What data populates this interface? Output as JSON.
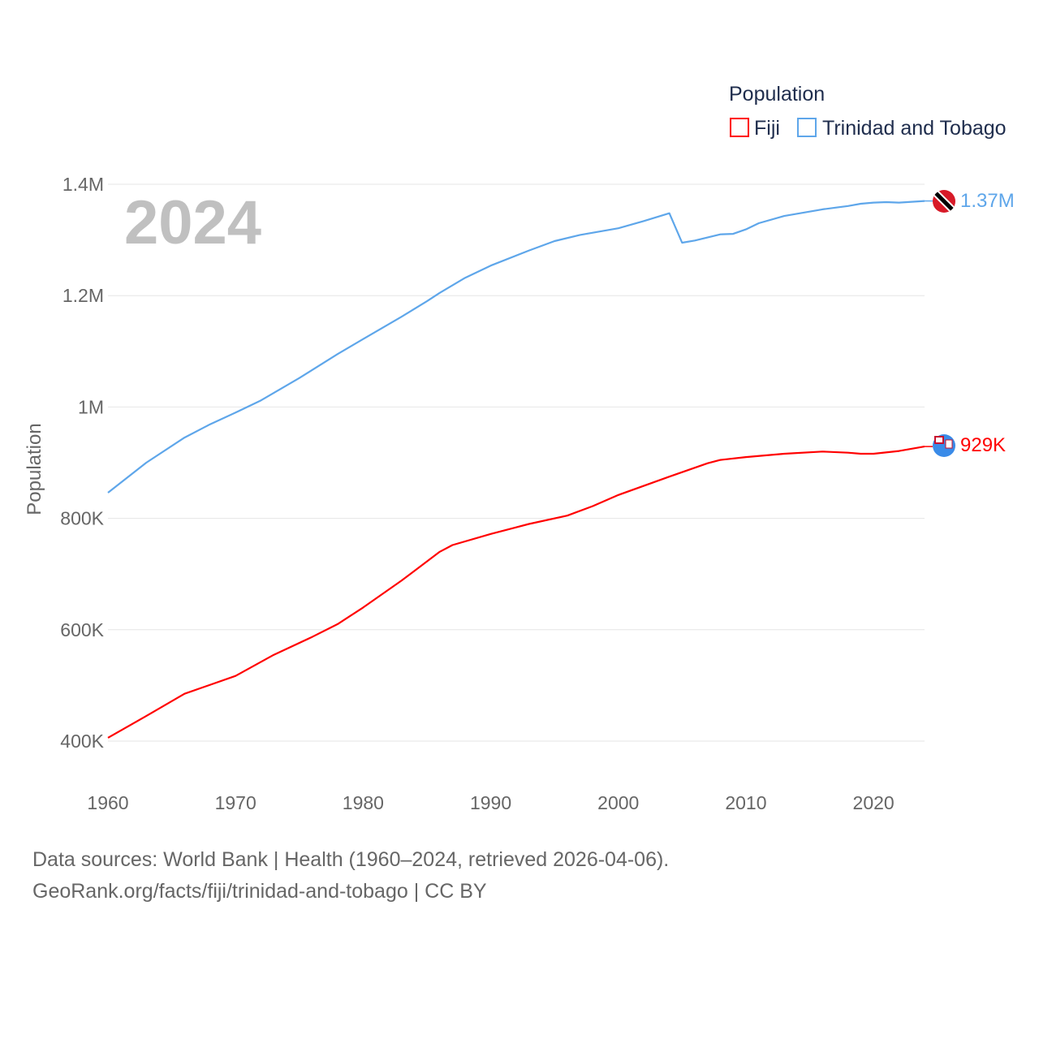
{
  "chart_data": {
    "type": "line",
    "year_label": "2024",
    "ylabel": "Population",
    "ylim": [
      400000,
      1400000
    ],
    "xlim": [
      1960,
      2024
    ],
    "y_ticks": [
      {
        "v": 400000,
        "label": "400K"
      },
      {
        "v": 600000,
        "label": "600K"
      },
      {
        "v": 800000,
        "label": "800K"
      },
      {
        "v": 1000000,
        "label": "1M"
      },
      {
        "v": 1200000,
        "label": "1.2M"
      },
      {
        "v": 1400000,
        "label": "1.4M"
      }
    ],
    "x_ticks": [
      1960,
      1970,
      1980,
      1990,
      2000,
      2010,
      2020
    ],
    "legend": {
      "title": "Population",
      "placement": "top-right"
    },
    "series": [
      {
        "name": "Fiji",
        "color": "#ff0000",
        "end_label": "929K",
        "x": [
          1960,
          1963,
          1966,
          1970,
          1973,
          1976,
          1978,
          1980,
          1983,
          1986,
          1987,
          1990,
          1993,
          1996,
          1998,
          2000,
          2004,
          2007,
          2008,
          2010,
          2013,
          2016,
          2018,
          2019,
          2020,
          2022,
          2024
        ],
        "y": [
          406000,
          445000,
          485000,
          517000,
          555000,
          587000,
          610000,
          640000,
          688000,
          740000,
          752000,
          772000,
          790000,
          805000,
          822000,
          842000,
          875000,
          899000,
          905000,
          910000,
          916000,
          920000,
          918000,
          916000,
          916000,
          921000,
          929000
        ]
      },
      {
        "name": "Trinidad and Tobago",
        "color": "#5ea6ea",
        "end_label": "1.37M",
        "x": [
          1960,
          1963,
          1966,
          1968,
          1970,
          1972,
          1975,
          1978,
          1980,
          1983,
          1985,
          1986,
          1988,
          1990,
          1993,
          1995,
          1997,
          2000,
          2002,
          2004,
          2005,
          2006,
          2008,
          2009,
          2010,
          2011,
          2013,
          2016,
          2018,
          2019,
          2020,
          2021,
          2022,
          2024
        ],
        "y": [
          846000,
          900000,
          945000,
          969000,
          990000,
          1012000,
          1052000,
          1095000,
          1122000,
          1162000,
          1190000,
          1205000,
          1232000,
          1254000,
          1281000,
          1298000,
          1309000,
          1321000,
          1334000,
          1348000,
          1295000,
          1299000,
          1310000,
          1311000,
          1319000,
          1330000,
          1343000,
          1355000,
          1361000,
          1365000,
          1367000,
          1368000,
          1367000,
          1370000
        ]
      }
    ]
  },
  "footer": {
    "line1": "Data sources: World Bank | Health (1960–2024, retrieved 2026-04-06).",
    "line2": "GeoRank.org/facts/fiji/trinidad-and-tobago | CC BY"
  }
}
